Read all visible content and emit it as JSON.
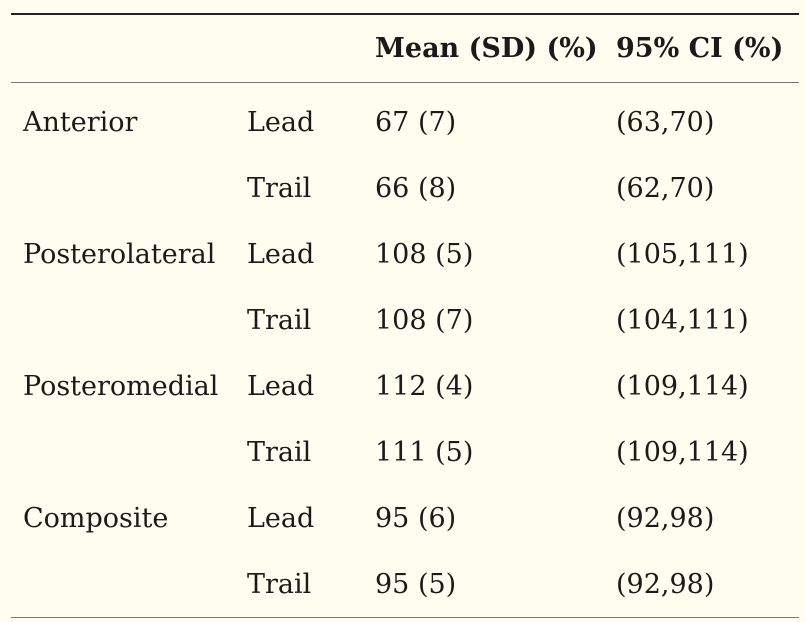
{
  "table": {
    "headers": [
      "",
      "",
      "Mean (SD) (%)",
      "95% CI (%)"
    ],
    "rows": [
      {
        "region": "Anterior",
        "side": "Lead",
        "mean": "67 (7)",
        "ci": "(63,70)"
      },
      {
        "region": "",
        "side": "Trail",
        "mean": "66 (8)",
        "ci": "(62,70)"
      },
      {
        "region": "Posterolateral",
        "side": "Lead",
        "mean": "108 (5)",
        "ci": "(105,111)"
      },
      {
        "region": "",
        "side": "Trail",
        "mean": "108 (7)",
        "ci": "(104,111)"
      },
      {
        "region": "Posteromedial",
        "side": "Lead",
        "mean": "112 (4)",
        "ci": "(109,114)"
      },
      {
        "region": "",
        "side": "Trail",
        "mean": "111 (5)",
        "ci": "(109,114)"
      },
      {
        "region": "Composite",
        "side": "Lead",
        "mean": "95 (6)",
        "ci": "(92,98)"
      },
      {
        "region": "",
        "side": "Trail",
        "mean": "95 (5)",
        "ci": "(92,98)"
      }
    ]
  }
}
